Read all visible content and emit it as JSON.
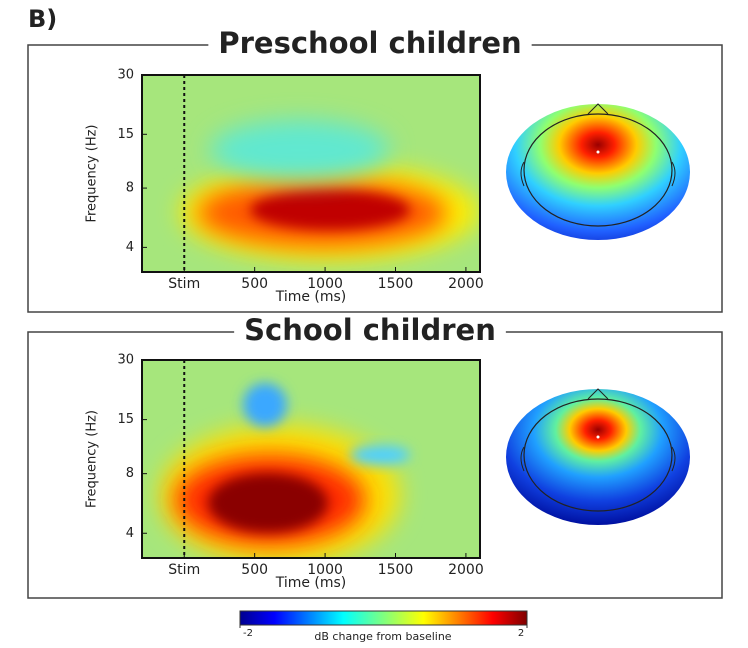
{
  "figure": {
    "panel_label": "B)",
    "panels": [
      {
        "title": "Preschool children",
        "y_label": "Frequency (Hz)",
        "x_label": "Time (ms)",
        "xlim": [
          -300,
          2100
        ],
        "xticks": [
          {
            "value": 0,
            "label": "Stim"
          },
          500,
          1000,
          1500,
          2000
        ],
        "ylim": [
          3,
          30
        ],
        "yticks": [
          4,
          8,
          15,
          30
        ],
        "y_scale": "log"
      },
      {
        "title": "School children",
        "y_label": "Frequency (Hz)",
        "x_label": "Time (ms)",
        "xlim": [
          -300,
          2100
        ],
        "xticks": [
          {
            "value": 0,
            "label": "Stim"
          },
          500,
          1000,
          1500,
          2000
        ],
        "ylim": [
          3,
          30
        ],
        "yticks": [
          4,
          8,
          15,
          30
        ],
        "y_scale": "log"
      }
    ],
    "colorbar": {
      "label": "dB change from baseline",
      "lim": [
        -2,
        2
      ],
      "ticks": [
        -2,
        2
      ]
    }
  }
}
